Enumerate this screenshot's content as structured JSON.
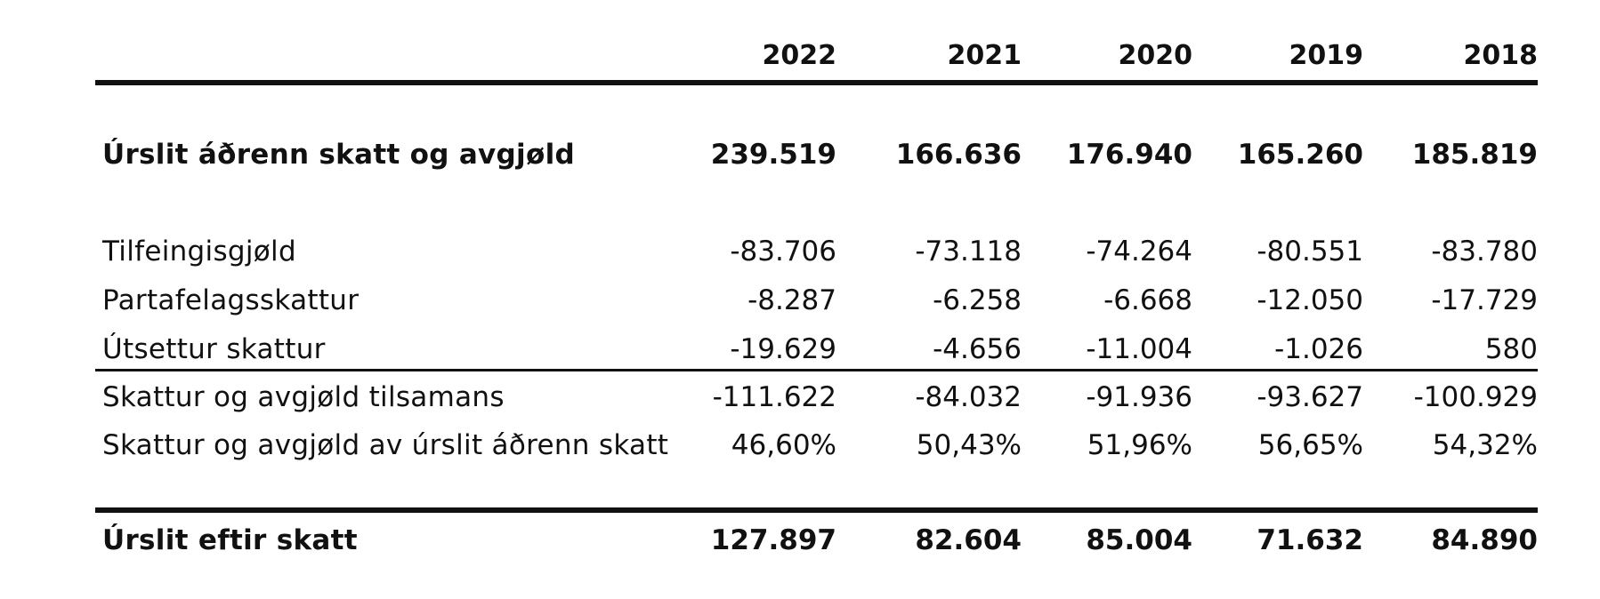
{
  "years": [
    "2022",
    "2021",
    "2020",
    "2019",
    "2018"
  ],
  "rows": [
    {
      "label": "Úrslit áðrenn skatt og avgjøld",
      "values": [
        "239.519",
        "166.636",
        "176.940",
        "165.260",
        "185.819"
      ]
    },
    {
      "label": "Tilfeingisgjøld",
      "values": [
        "-83.706",
        "-73.118",
        "-74.264",
        "-80.551",
        "-83.780"
      ]
    },
    {
      "label": "Partafelagsskattur",
      "values": [
        "-8.287",
        "-6.258",
        "-6.668",
        "-12.050",
        "-17.729"
      ]
    },
    {
      "label": "Útsettur skattur",
      "values": [
        "-19.629",
        "-4.656",
        "-11.004",
        "-1.026",
        "580"
      ]
    },
    {
      "label": "Skattur og avgjøld tilsamans",
      "values": [
        "-111.622",
        "-84.032",
        "-91.936",
        "-93.627",
        "-100.929"
      ]
    },
    {
      "label": "Skattur og avgjøld av úrslit áðrenn skatt",
      "values": [
        "46,60%",
        "50,43%",
        "51,96%",
        "56,65%",
        "54,32%"
      ]
    },
    {
      "label": "Úrslit eftir skatt",
      "values": [
        "127.897",
        "82.604",
        "85.004",
        "71.632",
        "84.890"
      ]
    }
  ]
}
